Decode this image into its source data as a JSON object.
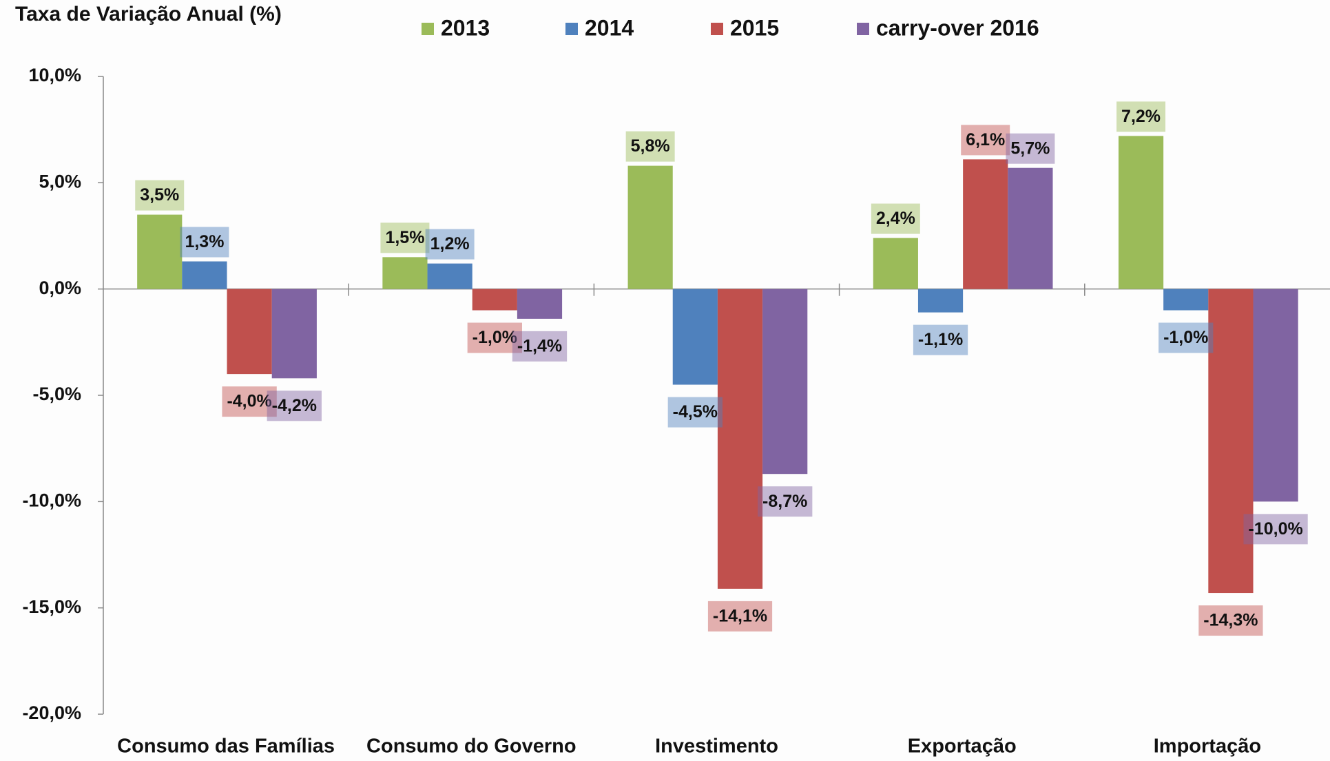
{
  "chart_data": {
    "type": "bar",
    "title": "Taxa de Variação Anual (%)",
    "categories": [
      "Consumo das Famílias",
      "Consumo do Governo",
      "Investimento",
      "Exportação",
      "Importação"
    ],
    "series": [
      {
        "name": "2013",
        "color": "#9bbb59",
        "values": [
          3.5,
          1.5,
          5.8,
          2.4,
          7.2
        ],
        "value_labels": [
          "3,5%",
          "1,5%",
          "5,8%",
          "2,4%",
          "7,2%"
        ]
      },
      {
        "name": "2014",
        "color": "#4f81bd",
        "values": [
          1.3,
          1.2,
          -4.5,
          -1.1,
          -1.0
        ],
        "value_labels": [
          "1,3%",
          "1,2%",
          "-4,5%",
          "-1,1%",
          "-1,0%"
        ]
      },
      {
        "name": "2015",
        "color": "#c0504d",
        "values": [
          -4.0,
          -1.0,
          -14.1,
          6.1,
          -14.3
        ],
        "value_labels": [
          "-4,0%",
          "-1,0%",
          "-14,1%",
          "6,1%",
          "-14,3%"
        ]
      },
      {
        "name": "carry-over 2016",
        "color": "#8064a2",
        "values": [
          -4.2,
          -1.4,
          -8.7,
          5.7,
          -10.0
        ],
        "value_labels": [
          "-4,2%",
          "-1,4%",
          "-8,7%",
          "5,7%",
          "-10,0%"
        ]
      }
    ],
    "ylim": [
      -20,
      10
    ],
    "yticks": [
      {
        "value": -20,
        "label": "-20,0%"
      },
      {
        "value": -15,
        "label": "-15,0%"
      },
      {
        "value": -10,
        "label": "-10,0%"
      },
      {
        "value": -5,
        "label": "-5,0%"
      },
      {
        "value": 0,
        "label": "0,0%"
      },
      {
        "value": 5,
        "label": "5,0%"
      },
      {
        "value": 10,
        "label": "10,0%"
      }
    ],
    "legend": "top"
  }
}
